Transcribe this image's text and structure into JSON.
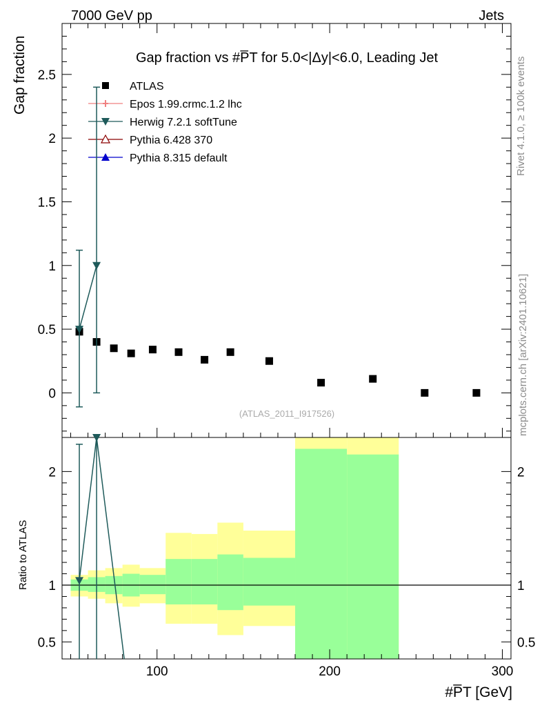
{
  "header": {
    "left": "7000 GeV pp",
    "right": "Jets"
  },
  "side": {
    "rivet": "Rivet 4.1.0, ≥ 100k events",
    "mcplots": "mcplots.cern.ch [arXiv:2401.10621]"
  },
  "chart_data": {
    "type": "scatter",
    "title": "Gap fraction vs #P̅T for 5.0<|Δy|<6.0, Leading Jet",
    "watermark": "(ATLAS_2011_I917526)",
    "xlabel": "#P̅T [GeV]",
    "ylabel": "Gap fraction",
    "ratio_ylabel": "Ratio to ATLAS",
    "xlim": [
      45,
      305
    ],
    "ylim": [
      -0.35,
      2.9
    ],
    "ratio_ylim": [
      0.35,
      2.3
    ],
    "x_ticks": [
      "100",
      "200",
      "300"
    ],
    "y_ticks": [
      "0",
      "0.5",
      "1",
      "1.5",
      "2",
      "2.5"
    ],
    "ratio_ticks": [
      "0.5",
      "1",
      "2"
    ],
    "legend": [
      {
        "label": "ATLAS",
        "color": "#000000",
        "marker": "square"
      },
      {
        "label": "Epos 1.99.crmc.1.2 lhc",
        "color": "#f08080",
        "marker": "cross"
      },
      {
        "label": "Herwig 7.2.1 softTune",
        "color": "#1e5a5a",
        "marker": "triangle-down"
      },
      {
        "label": "Pythia 6.428 370",
        "color": "#8b0000",
        "marker": "triangle-open"
      },
      {
        "label": "Pythia 8.315 default",
        "color": "#0000cc",
        "marker": "triangle-up"
      }
    ],
    "atlas": {
      "x": [
        55,
        65,
        75,
        85,
        97.5,
        112.5,
        127.5,
        142.5,
        165,
        195,
        225,
        255,
        285
      ],
      "y": [
        0.48,
        0.4,
        0.35,
        0.31,
        0.34,
        0.32,
        0.26,
        0.32,
        0.25,
        0.08,
        0.11,
        0.0,
        0.0
      ]
    },
    "herwig": {
      "x": [
        55,
        65
      ],
      "y": [
        0.5,
        1.0
      ],
      "err_low": [
        0.61,
        1.0
      ],
      "err_high": [
        0.62,
        1.4
      ]
    },
    "ratio_bands": [
      {
        "x0": 50,
        "x1": 60,
        "y_lo": 0.9,
        "y_hi": 1.09,
        "g_lo": 0.95,
        "g_hi": 1.05
      },
      {
        "x0": 60,
        "x1": 70,
        "y_lo": 0.88,
        "y_hi": 1.13,
        "g_lo": 0.94,
        "g_hi": 1.07
      },
      {
        "x0": 70,
        "x1": 80,
        "y_lo": 0.84,
        "y_hi": 1.15,
        "g_lo": 0.92,
        "g_hi": 1.08
      },
      {
        "x0": 80,
        "x1": 90,
        "y_lo": 0.81,
        "y_hi": 1.18,
        "g_lo": 0.9,
        "g_hi": 1.1
      },
      {
        "x0": 90,
        "x1": 105,
        "y_lo": 0.84,
        "y_hi": 1.15,
        "g_lo": 0.92,
        "g_hi": 1.09
      },
      {
        "x0": 105,
        "x1": 120,
        "y_lo": 0.66,
        "y_hi": 1.46,
        "g_lo": 0.83,
        "g_hi": 1.23
      },
      {
        "x0": 120,
        "x1": 135,
        "y_lo": 0.66,
        "y_hi": 1.45,
        "g_lo": 0.83,
        "g_hi": 1.23
      },
      {
        "x0": 135,
        "x1": 150,
        "y_lo": 0.56,
        "y_hi": 1.55,
        "g_lo": 0.78,
        "g_hi": 1.27
      },
      {
        "x0": 150,
        "x1": 180,
        "y_lo": 0.64,
        "y_hi": 1.48,
        "g_lo": 0.82,
        "g_hi": 1.24
      },
      {
        "x0": 180,
        "x1": 210,
        "y_lo": 0.3,
        "y_hi": 2.6,
        "g_lo": 0.3,
        "g_hi": 2.2
      },
      {
        "x0": 210,
        "x1": 240,
        "y_lo": 0.3,
        "y_hi": 2.6,
        "g_lo": 0.3,
        "g_hi": 2.15
      }
    ],
    "herwig_ratio": {
      "x": [
        55,
        65,
        81
      ],
      "y": [
        1.04,
        2.3,
        0.3
      ],
      "err_low": [
        0.8,
        2.1
      ],
      "err_high": [
        1.2,
        0.1
      ]
    }
  }
}
